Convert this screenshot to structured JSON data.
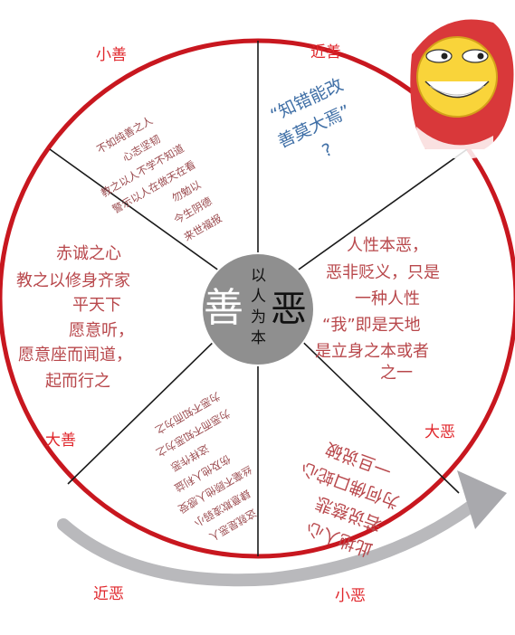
{
  "labels": {
    "top_left": "小善",
    "top_right": "近善",
    "left_bottom": "大善",
    "right_bottom": "大恶",
    "bottom_left": "近恶",
    "bottom_right": "小恶"
  },
  "center": {
    "good": "善",
    "evil": "恶",
    "motto": [
      "以",
      "人",
      "为",
      "本"
    ]
  },
  "segments": {
    "top_left_lines": [
      "不如纯善之人",
      "心志坚韧",
      "教之以人不学不知道",
      "警示以人在做天在看",
      "勿勉以",
      "今生阴德",
      "来世福报"
    ],
    "top_right_lines": [
      "“知错能改",
      "善莫大焉”",
      "?"
    ],
    "right_lines": [
      "人性本恶，",
      "恶非贬义，只是",
      "一种人性",
      "“我”即是天地",
      "是立身之本或者",
      "之一"
    ],
    "left_lines": [
      "赤诚之心",
      "教之以修身齐家",
      "平天下",
      "愿意听，",
      "愿意座而闻道，",
      "起而行之"
    ],
    "bottom_left_lines": [
      "这就是恶人",
      "肆意欺凌弱小",
      "丝毫不顾他人感受",
      "伤及他人利益",
      "这样作恶",
      "为恶而不知恶为之",
      "为恶不知而为之",
      "此地人心"
    ],
    "bottom_right_lines": [
      "此地人心",
      "若说慈悲",
      "为何佛口蛇心",
      "一旦说破"
    ]
  },
  "colors": {
    "rim": "#c8171f",
    "center_fill": "#8f8f8f",
    "text_red": "#b8474b",
    "text_blue": "#3f6fa6",
    "label_red": "#e0262b"
  },
  "icons": [
    "smiley-face-icon",
    "circular-arrow-icon"
  ]
}
